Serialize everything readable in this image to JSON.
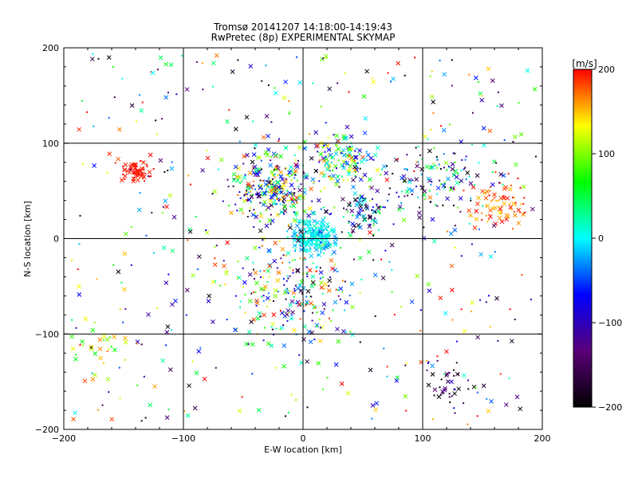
{
  "chart_data": {
    "type": "scatter",
    "title": "Tromsø 20141207 14:18:00-14:19:43",
    "subtitle": "RwPretec (8p) EXPERIMENTAL SKYMAP",
    "xlabel": "E-W location [km]",
    "ylabel": "N-S location [km]",
    "xlim": [
      -200,
      200
    ],
    "ylim": [
      -200,
      200
    ],
    "xticks": [
      "-200",
      "-100",
      "0",
      "100",
      "200"
    ],
    "yticks": [
      "-200",
      "-100",
      "0",
      "100",
      "200"
    ],
    "grid": true,
    "marker_types": [
      "cross",
      "dot"
    ],
    "colorbar": {
      "label": "[m/s]",
      "range": [
        -200,
        200
      ],
      "ticks": [
        "200",
        "100",
        "0",
        "-100",
        "-200"
      ],
      "colormap": [
        "#000000",
        "#5a0078",
        "#0000ff",
        "#00ffff",
        "#00ff00",
        "#ffff00",
        "#ff0000"
      ]
    },
    "clusters": [
      {
        "region": "center",
        "x": 10,
        "y": 3,
        "spread": 15,
        "count": 240,
        "velocity": 0,
        "velocity_spread": 30
      },
      {
        "region": "upper-center",
        "x": -25,
        "y": 55,
        "spread": 30,
        "count": 300,
        "velocity": 0,
        "velocity_spread": 200
      },
      {
        "region": "upper-right-of-center",
        "x": 30,
        "y": 85,
        "spread": 25,
        "count": 150,
        "velocity": 40,
        "velocity_spread": 150
      },
      {
        "region": "right-middle",
        "x": 50,
        "y": 30,
        "spread": 20,
        "count": 90,
        "velocity": -50,
        "velocity_spread": 150
      },
      {
        "region": "upper-left",
        "x": -140,
        "y": 70,
        "spread": 10,
        "count": 70,
        "velocity": 195,
        "velocity_spread": 8
      },
      {
        "region": "far-right",
        "x": 165,
        "y": 35,
        "spread": 20,
        "count": 80,
        "velocity": 175,
        "velocity_spread": 30
      },
      {
        "region": "right-band",
        "x": 110,
        "y": 60,
        "spread": 35,
        "count": 120,
        "velocity": -60,
        "velocity_spread": 160
      },
      {
        "region": "lower-center",
        "x": -10,
        "y": -55,
        "spread": 45,
        "count": 220,
        "velocity": 0,
        "velocity_spread": 200
      },
      {
        "region": "lower-left",
        "x": -170,
        "y": -110,
        "spread": 20,
        "count": 30,
        "velocity": 120,
        "velocity_spread": 60
      },
      {
        "region": "lower-right",
        "x": 120,
        "y": -150,
        "spread": 20,
        "count": 40,
        "velocity": -150,
        "velocity_spread": 80
      },
      {
        "region": "background",
        "x": 0,
        "y": 0,
        "spread": 200,
        "count": 480,
        "velocity": 0,
        "velocity_spread": 220
      }
    ]
  }
}
